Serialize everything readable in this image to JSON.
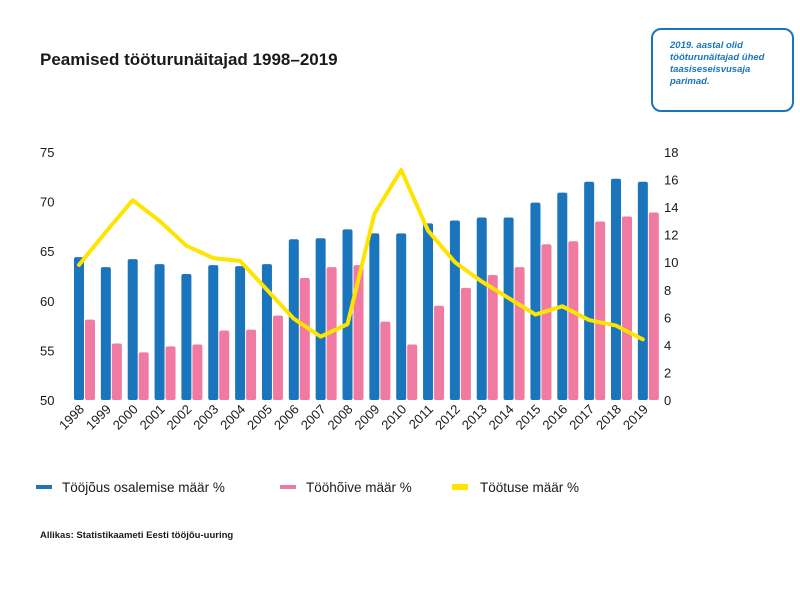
{
  "title": "Peamised tööturunäitajad 1998–2019",
  "note": "2019. aastal olid tööturunäitajad ühed taasiseseisvusaja parimad.",
  "source": "Allikas: Statistikaameti Eesti tööjõu-uuring",
  "colors": {
    "blue": "#1b75bc",
    "pink": "#f07aa2",
    "yellow": "#ffe400"
  },
  "chart_data": {
    "type": "bar",
    "categories": [
      "1998",
      "1999",
      "2000",
      "2001",
      "2002",
      "2003",
      "2004",
      "2005",
      "2006",
      "2007",
      "2008",
      "2009",
      "2010",
      "2011",
      "2012",
      "2013",
      "2014",
      "2015",
      "2016",
      "2017",
      "2018",
      "2019"
    ],
    "left_axis": {
      "ylim": [
        50,
        75
      ],
      "ticks": [
        50,
        55,
        60,
        65,
        70,
        75
      ]
    },
    "right_axis": {
      "ylim": [
        0,
        18
      ],
      "ticks": [
        0,
        2,
        4,
        6,
        8,
        10,
        12,
        14,
        16,
        18
      ]
    },
    "legend_position": "bottom",
    "grid": false,
    "series": [
      {
        "name": "Tööjõus osalemise määr %",
        "type": "bar",
        "axis": "left",
        "color": "#1b75bc",
        "values": [
          64.4,
          63.4,
          64.2,
          63.7,
          62.7,
          63.6,
          63.5,
          63.7,
          66.2,
          66.3,
          67.2,
          66.8,
          66.8,
          67.8,
          68.1,
          68.4,
          68.4,
          69.9,
          70.9,
          72.0,
          72.3,
          72.0
        ]
      },
      {
        "name": "Tööhõive määr %",
        "type": "bar",
        "axis": "left",
        "color": "#f07aa2",
        "values": [
          58.1,
          55.7,
          54.8,
          55.4,
          55.6,
          57.0,
          57.1,
          58.5,
          62.3,
          63.4,
          63.6,
          57.9,
          55.6,
          59.5,
          61.3,
          62.6,
          63.4,
          65.7,
          66.0,
          68.0,
          68.5,
          68.9
        ]
      },
      {
        "name": "Töötuse määr %",
        "type": "line",
        "axis": "right",
        "color": "#ffe400",
        "values": [
          9.8,
          12.2,
          14.5,
          13.0,
          11.2,
          10.3,
          10.1,
          8.0,
          5.9,
          4.6,
          5.5,
          13.5,
          16.7,
          12.3,
          10.0,
          8.6,
          7.4,
          6.2,
          6.8,
          5.8,
          5.4,
          4.4
        ]
      }
    ]
  }
}
